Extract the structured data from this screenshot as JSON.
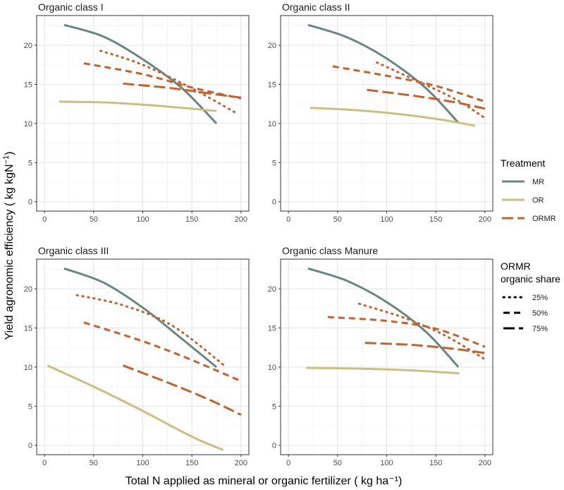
{
  "colors": {
    "MR": "#6b8582",
    "OR": "#cbbf80",
    "ORMR": "#c4622d",
    "grid_major": "#e3e3e3",
    "grid_minor": "#f1f1f1",
    "panel_border": "#333333"
  },
  "chart_data": {
    "type": "line",
    "xlabel": "Total N applied as mineral or organic fertilizer ( kg ha⁻¹)",
    "ylabel_main": "Yield agronomic efficiency ( kg kgN",
    "ylabel_sup": "−1",
    "ylabel_close": ")",
    "xlim": [
      -8,
      208
    ],
    "ylim": [
      -1.2,
      23.8
    ],
    "xticks": [
      0,
      50,
      100,
      150,
      200
    ],
    "yticks": [
      0,
      5,
      10,
      15,
      20
    ],
    "legend_treatment": {
      "title": "Treatment",
      "items": [
        {
          "label": "MR",
          "key": "MR",
          "dash": "solid"
        },
        {
          "label": "OR",
          "key": "OR",
          "dash": "solid"
        },
        {
          "label": "ORMR",
          "key": "ORMR",
          "dash": "longdash"
        }
      ]
    },
    "legend_share": {
      "title_line1": "ORMR",
      "title_line2": "organic share",
      "items": [
        {
          "label": "25%",
          "dash": "dotted"
        },
        {
          "label": "50%",
          "dash": "dashed"
        },
        {
          "label": "75%",
          "dash": "longdash"
        }
      ]
    },
    "panels": [
      {
        "title": "Organic class I",
        "series": [
          {
            "name": "MR",
            "color_key": "MR",
            "dash": "solid",
            "x": [
              20,
              60,
              100,
              140,
              175
            ],
            "y": [
              22.6,
              21.1,
              18.2,
              14.5,
              10.0
            ]
          },
          {
            "name": "OR",
            "color_key": "OR",
            "dash": "solid",
            "x": [
              15,
              60,
              100,
              140,
              175
            ],
            "y": [
              12.8,
              12.7,
              12.4,
              12.0,
              11.6
            ]
          },
          {
            "name": "ORMR 25%",
            "color_key": "ORMR",
            "dash": "dotted",
            "x": [
              57,
              100,
              150,
              197
            ],
            "y": [
              19.3,
              17.5,
              14.5,
              11.2
            ]
          },
          {
            "name": "ORMR 50%",
            "color_key": "ORMR",
            "dash": "dashed",
            "x": [
              40,
              100,
              150,
              200
            ],
            "y": [
              17.7,
              16.3,
              14.6,
              13.2
            ]
          },
          {
            "name": "ORMR 75%",
            "color_key": "ORMR",
            "dash": "longdash",
            "x": [
              80,
              130,
              170,
              200
            ],
            "y": [
              15.1,
              14.5,
              13.8,
              13.3
            ]
          }
        ]
      },
      {
        "title": "Organic class II",
        "series": [
          {
            "name": "MR",
            "color_key": "MR",
            "dash": "solid",
            "x": [
              20,
              60,
              100,
              140,
              173
            ],
            "y": [
              22.6,
              21.0,
              18.3,
              14.5,
              10.1
            ]
          },
          {
            "name": "OR",
            "color_key": "OR",
            "dash": "solid",
            "x": [
              22,
              70,
              120,
              160,
              190
            ],
            "y": [
              12.0,
              11.7,
              11.1,
              10.4,
              9.7
            ]
          },
          {
            "name": "ORMR 25%",
            "color_key": "ORMR",
            "dash": "dotted",
            "x": [
              90,
              130,
              170,
              200
            ],
            "y": [
              17.8,
              15.5,
              13.1,
              10.7
            ]
          },
          {
            "name": "ORMR 50%",
            "color_key": "ORMR",
            "dash": "dashed",
            "x": [
              45,
              100,
              150,
              200
            ],
            "y": [
              17.3,
              16.1,
              14.8,
              12.8
            ]
          },
          {
            "name": "ORMR 75%",
            "color_key": "ORMR",
            "dash": "longdash",
            "x": [
              80,
              130,
              170,
              200
            ],
            "y": [
              14.3,
              13.5,
              12.7,
              11.9
            ]
          }
        ]
      },
      {
        "title": "Organic class III",
        "series": [
          {
            "name": "MR",
            "color_key": "MR",
            "dash": "solid",
            "x": [
              20,
              60,
              100,
              140,
              175
            ],
            "y": [
              22.6,
              20.8,
              17.6,
              13.6,
              10.0
            ]
          },
          {
            "name": "OR",
            "color_key": "OR",
            "dash": "solid",
            "x": [
              3,
              50,
              100,
              150,
              182
            ],
            "y": [
              10.2,
              7.5,
              4.4,
              1.1,
              -0.6
            ]
          },
          {
            "name": "ORMR 25%",
            "color_key": "ORMR",
            "dash": "dotted",
            "x": [
              33,
              80,
              130,
              185
            ],
            "y": [
              19.2,
              17.9,
              15.3,
              10.0
            ]
          },
          {
            "name": "ORMR 50%",
            "color_key": "ORMR",
            "dash": "dashed",
            "x": [
              40,
              100,
              150,
              200
            ],
            "y": [
              15.7,
              13.3,
              10.9,
              8.2
            ]
          },
          {
            "name": "ORMR 75%",
            "color_key": "ORMR",
            "dash": "longdash",
            "x": [
              80,
              130,
              170,
              200
            ],
            "y": [
              10.2,
              7.8,
              5.7,
              3.9
            ]
          }
        ]
      },
      {
        "title": "Organic class Manure",
        "series": [
          {
            "name": "MR",
            "color_key": "MR",
            "dash": "solid",
            "x": [
              20,
              60,
              100,
              140,
              173
            ],
            "y": [
              22.6,
              21.0,
              18.3,
              14.5,
              10.0
            ]
          },
          {
            "name": "OR",
            "color_key": "OR",
            "dash": "solid",
            "x": [
              18,
              70,
              120,
              174
            ],
            "y": [
              9.9,
              9.8,
              9.6,
              9.2
            ]
          },
          {
            "name": "ORMR 25%",
            "color_key": "ORMR",
            "dash": "dotted",
            "x": [
              72,
              120,
              160,
              200
            ],
            "y": [
              18.1,
              16.2,
              14.0,
              11.0
            ]
          },
          {
            "name": "ORMR 50%",
            "color_key": "ORMR",
            "dash": "dashed",
            "x": [
              40,
              100,
              150,
              200
            ],
            "y": [
              16.4,
              15.9,
              14.9,
              12.6
            ]
          },
          {
            "name": "ORMR 75%",
            "color_key": "ORMR",
            "dash": "longdash",
            "x": [
              78,
              130,
              170,
              200
            ],
            "y": [
              13.1,
              12.8,
              12.3,
              11.8
            ]
          }
        ]
      }
    ]
  }
}
